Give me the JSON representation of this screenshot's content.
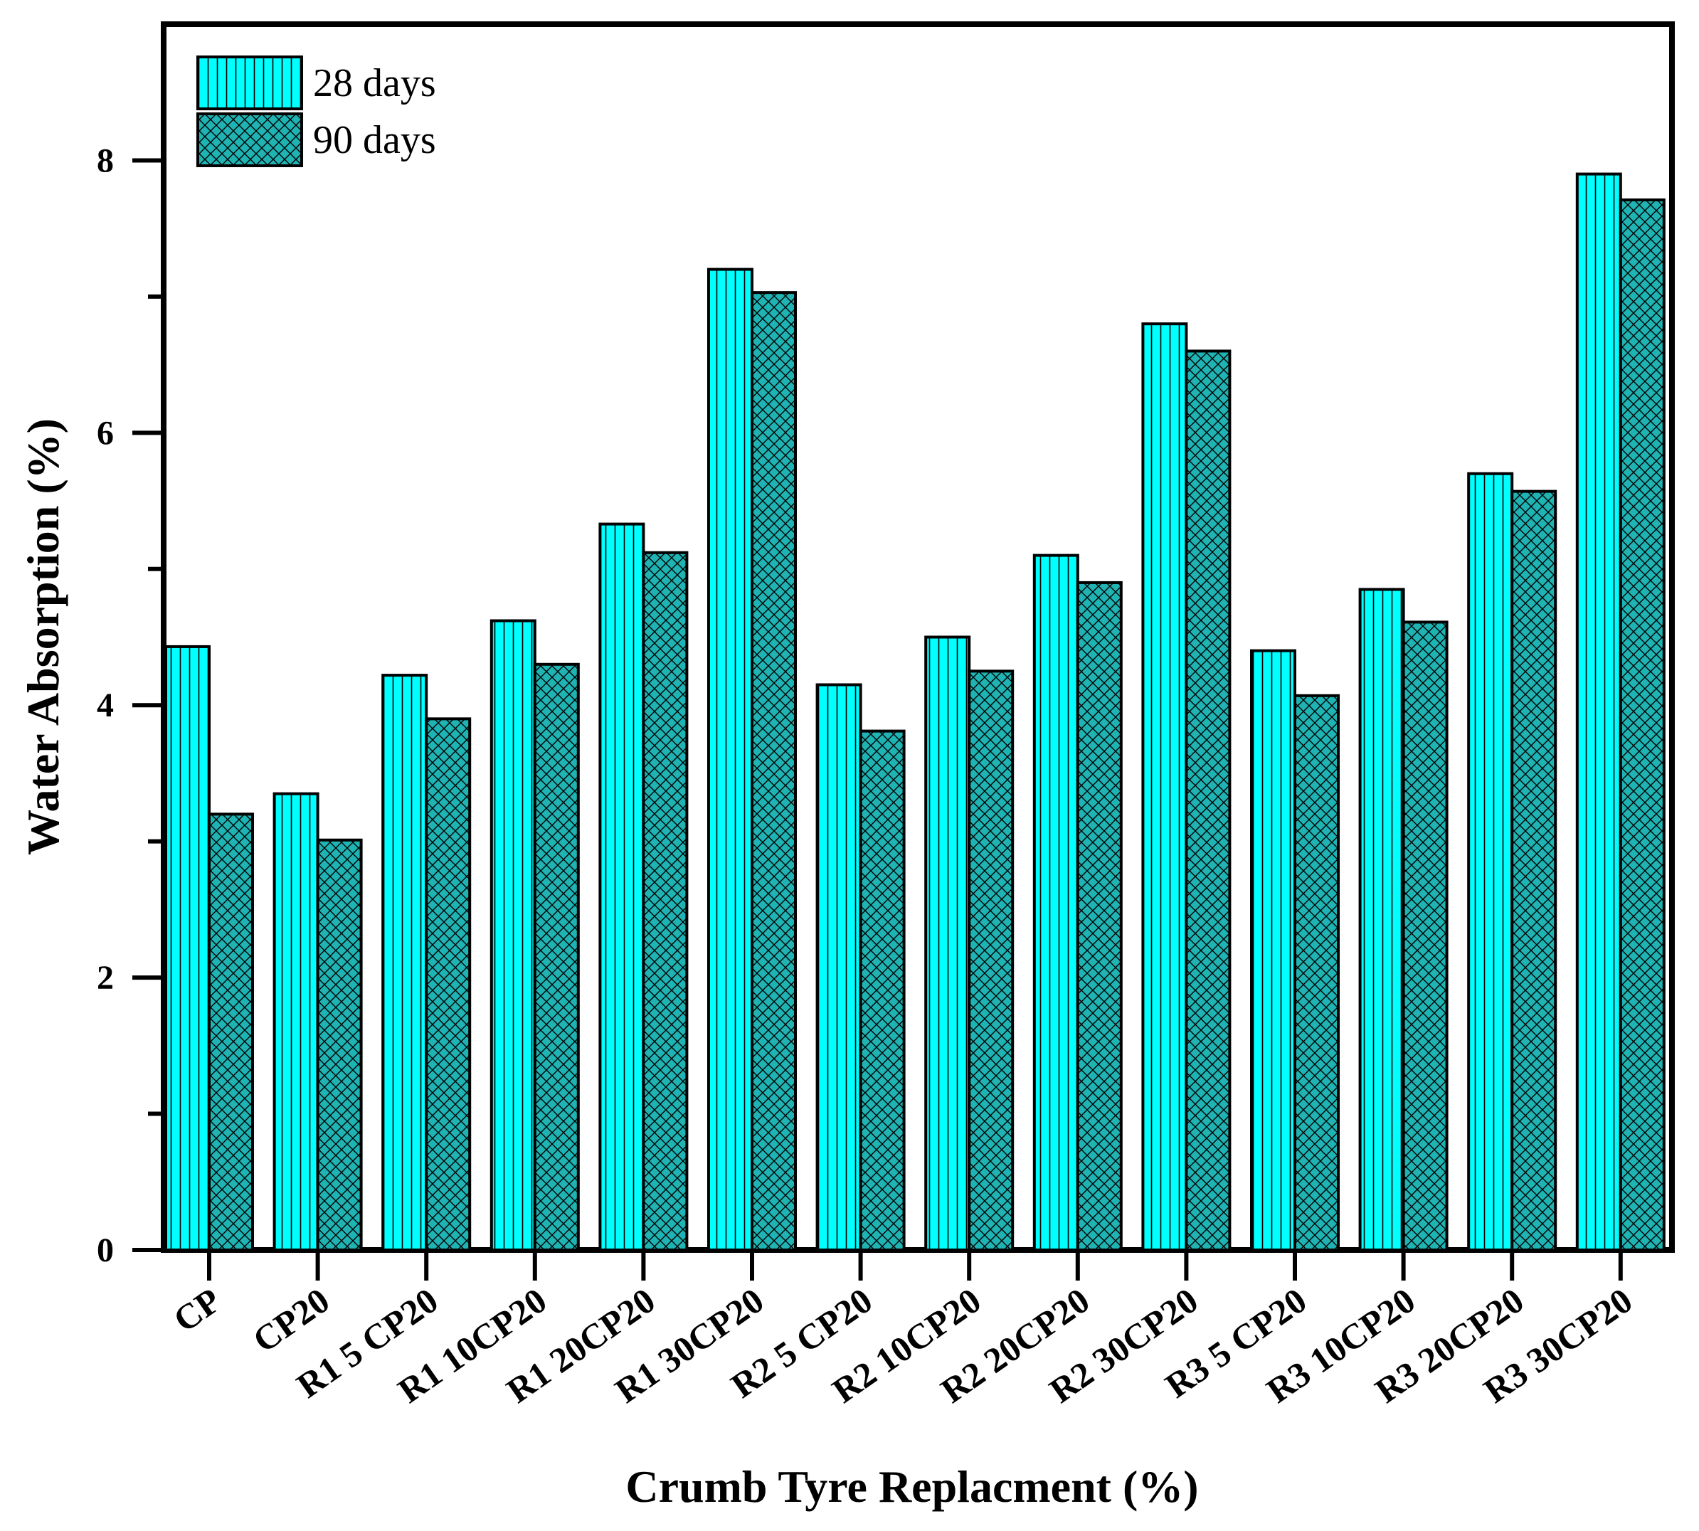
{
  "chart_data": {
    "type": "bar",
    "title": "",
    "xlabel": "Crumb Tyre Replacment (%)",
    "ylabel": "Water Absorption (%)",
    "ylim": [
      0,
      9
    ],
    "yticks": [
      "0",
      "2",
      "4",
      "6",
      "8"
    ],
    "grid": false,
    "legend_position": "top-left",
    "categories": [
      "CP",
      "CP20",
      "R1 5 CP20",
      "R1 10CP20",
      "R1 20CP20",
      "R1 30CP20",
      "R2 5 CP20",
      "R2 10CP20",
      "R2 20CP20",
      "R2 30CP20",
      "R3 5 CP20",
      "R3 10CP20",
      "R3 20CP20",
      "R3 30CP20"
    ],
    "series": [
      {
        "name": "28 days",
        "color": "#00FFFF",
        "pattern": "vertical-lines",
        "values": [
          4.43,
          3.35,
          4.22,
          4.62,
          5.33,
          7.2,
          4.15,
          4.5,
          5.1,
          6.8,
          4.4,
          4.85,
          5.7,
          7.9
        ]
      },
      {
        "name": "90 days",
        "color": "#1FB3B3",
        "pattern": "crosshatch",
        "values": [
          3.2,
          3.01,
          3.9,
          4.3,
          5.12,
          7.03,
          3.81,
          4.25,
          4.9,
          6.6,
          4.07,
          4.61,
          5.57,
          7.71
        ]
      }
    ]
  }
}
